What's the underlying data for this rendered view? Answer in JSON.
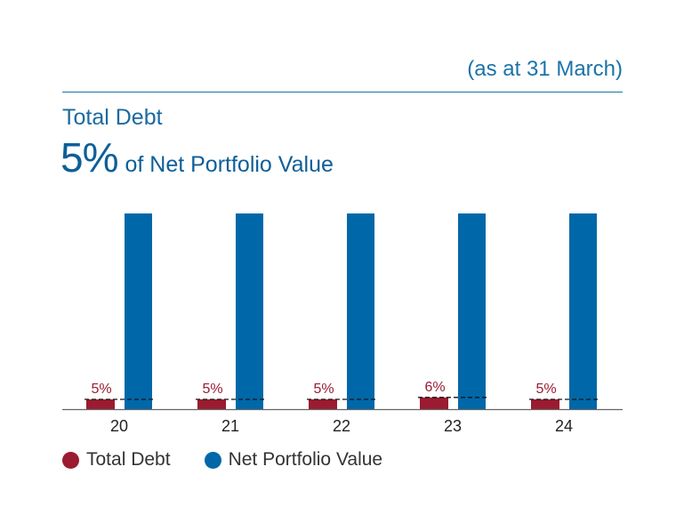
{
  "header": {
    "subtitle": "(as at 31 March)",
    "title": "Total Debt",
    "headline_value": "5%",
    "headline_text": "of Net Portfolio Value"
  },
  "chart_data": {
    "type": "bar",
    "categories": [
      "20",
      "21",
      "22",
      "23",
      "24"
    ],
    "series": [
      {
        "name": "Total Debt",
        "values": [
          5,
          5,
          5,
          6,
          5
        ],
        "labels": [
          "5%",
          "5%",
          "5%",
          "6%",
          "5%"
        ],
        "color": "#9b1b30"
      },
      {
        "name": "Net Portfolio Value",
        "values": [
          100,
          100,
          100,
          100,
          100
        ],
        "color": "#0068a8"
      }
    ],
    "ylim": [
      0,
      100
    ],
    "grid": false,
    "legend_position": "bottom-left"
  },
  "legend": [
    {
      "label": "Total Debt",
      "color": "#9b1b30"
    },
    {
      "label": "Net Portfolio Value",
      "color": "#0068a8"
    }
  ]
}
